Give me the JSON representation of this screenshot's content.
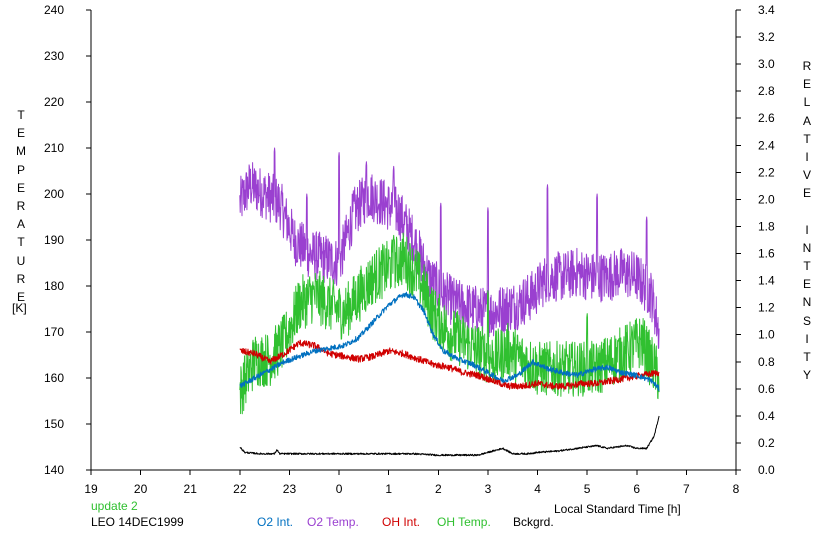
{
  "chart_data": {
    "type": "line",
    "title": "",
    "xlabel": "Local Standard Time [h]",
    "x_ticks": [
      "19",
      "20",
      "21",
      "22",
      "23",
      "0",
      "1",
      "2",
      "3",
      "4",
      "5",
      "6",
      "7",
      "8"
    ],
    "xlim": [
      19,
      32
    ],
    "left_axis": {
      "label_chars": [
        "T",
        "E",
        "M",
        "P",
        "E",
        "R",
        "A",
        "T",
        "U",
        "R",
        "E"
      ],
      "unit": "[K]",
      "ylim": [
        140,
        240
      ],
      "ticks": [
        "140",
        "150",
        "160",
        "170",
        "180",
        "190",
        "200",
        "210",
        "220",
        "230",
        "240"
      ]
    },
    "right_axis": {
      "label_chars": [
        "R",
        "E",
        "L",
        "A",
        "T",
        "I",
        "V",
        "E",
        " ",
        "I",
        "N",
        "T",
        "E",
        "N",
        "S",
        "I",
        "T",
        "Y"
      ],
      "ylim": [
        0.0,
        3.4
      ],
      "ticks": [
        "0.0",
        "0.2",
        "0.4",
        "0.6",
        "0.8",
        "1.0",
        "1.2",
        "1.4",
        "1.6",
        "1.8",
        "2.0",
        "2.2",
        "2.4",
        "2.6",
        "2.8",
        "3.0",
        "3.2",
        "3.4"
      ]
    },
    "update_note": "update 2",
    "station_label": "LEO 14DEC1999",
    "grid": false,
    "legend_position": "bottom",
    "series": [
      {
        "name": "O2 Int.",
        "axis": "right",
        "color": "#0070c0",
        "noise": 0.02,
        "x": [
          22.0,
          22.3,
          22.6,
          22.9,
          23.2,
          23.5,
          23.8,
          24.1,
          24.4,
          24.7,
          25.0,
          25.3,
          25.5,
          25.7,
          25.9,
          26.1,
          26.4,
          26.7,
          27.0,
          27.3,
          27.6,
          27.9,
          28.2,
          28.5,
          28.8,
          29.1,
          29.4,
          29.7,
          30.0,
          30.3,
          30.45
        ],
        "y": [
          0.62,
          0.68,
          0.74,
          0.8,
          0.84,
          0.88,
          0.9,
          0.92,
          0.98,
          1.1,
          1.22,
          1.3,
          1.28,
          1.18,
          1.0,
          0.88,
          0.82,
          0.78,
          0.72,
          0.66,
          0.7,
          0.8,
          0.75,
          0.72,
          0.7,
          0.74,
          0.76,
          0.72,
          0.7,
          0.66,
          0.6
        ]
      },
      {
        "name": "O2 Temp.",
        "axis": "left",
        "color": "#9a40d0",
        "noise": 5.5,
        "x": [
          22.0,
          22.2,
          22.5,
          22.8,
          23.1,
          23.4,
          23.7,
          24.0,
          24.3,
          24.6,
          24.9,
          25.2,
          25.5,
          25.8,
          26.1,
          26.4,
          26.7,
          27.0,
          27.3,
          27.6,
          27.9,
          28.2,
          28.5,
          28.8,
          29.1,
          29.4,
          29.7,
          30.0,
          30.3,
          30.45
        ],
        "y": [
          198,
          202,
          200,
          198,
          190,
          187,
          186,
          185,
          196,
          200,
          198,
          196,
          190,
          182,
          178,
          176,
          175,
          174,
          175,
          176,
          178,
          182,
          182,
          183,
          182,
          182,
          183,
          182,
          178,
          170
        ],
        "spikes": [
          [
            22.7,
            210
          ],
          [
            23.35,
            200
          ],
          [
            24.0,
            209
          ],
          [
            24.55,
            207
          ],
          [
            25.1,
            206
          ],
          [
            26.05,
            198
          ],
          [
            27.0,
            197
          ],
          [
            28.2,
            202
          ],
          [
            29.2,
            200
          ],
          [
            30.2,
            195
          ]
        ]
      },
      {
        "name": "OH Int.",
        "axis": "right",
        "color": "#d00000",
        "noise": 0.025,
        "x": [
          22.0,
          22.3,
          22.6,
          22.9,
          23.2,
          23.5,
          23.8,
          24.1,
          24.4,
          24.7,
          25.0,
          25.3,
          25.6,
          25.9,
          26.2,
          26.5,
          26.8,
          27.1,
          27.4,
          27.7,
          28.0,
          28.3,
          28.6,
          28.9,
          29.2,
          29.5,
          29.8,
          30.1,
          30.45
        ],
        "y": [
          0.88,
          0.86,
          0.8,
          0.86,
          0.94,
          0.92,
          0.86,
          0.84,
          0.82,
          0.84,
          0.88,
          0.86,
          0.82,
          0.78,
          0.76,
          0.72,
          0.7,
          0.66,
          0.62,
          0.62,
          0.64,
          0.62,
          0.62,
          0.64,
          0.64,
          0.66,
          0.68,
          0.7,
          0.72
        ]
      },
      {
        "name": "OH Temp.",
        "axis": "left",
        "color": "#30c030",
        "noise": 6.0,
        "x": [
          22.0,
          22.3,
          22.6,
          22.9,
          23.2,
          23.5,
          23.8,
          24.1,
          24.4,
          24.7,
          25.0,
          25.3,
          25.6,
          25.9,
          26.2,
          26.5,
          26.8,
          27.1,
          27.4,
          27.7,
          28.0,
          28.3,
          28.6,
          28.9,
          29.2,
          29.5,
          29.8,
          30.1,
          30.45
        ],
        "y": [
          157,
          164,
          164,
          168,
          176,
          178,
          176,
          174,
          178,
          182,
          184,
          186,
          182,
          174,
          170,
          168,
          166,
          164,
          166,
          164,
          162,
          162,
          162,
          162,
          162,
          164,
          166,
          168,
          160
        ],
        "spikes": [
          [
            25.1,
            191
          ],
          [
            27.0,
            179
          ],
          [
            29.0,
            174
          ]
        ]
      },
      {
        "name": "Bckgrd.",
        "axis": "right",
        "color": "#000000",
        "noise": 0.006,
        "x": [
          22.0,
          22.1,
          22.4,
          22.7,
          22.75,
          22.8,
          23.0,
          23.5,
          24.0,
          24.5,
          25.0,
          25.5,
          26.0,
          26.5,
          26.8,
          27.0,
          27.3,
          27.5,
          27.8,
          28.0,
          28.4,
          28.8,
          29.2,
          29.4,
          29.6,
          29.8,
          30.0,
          30.2,
          30.35,
          30.45
        ],
        "y": [
          0.17,
          0.13,
          0.12,
          0.12,
          0.15,
          0.12,
          0.12,
          0.12,
          0.12,
          0.12,
          0.12,
          0.12,
          0.11,
          0.11,
          0.11,
          0.13,
          0.16,
          0.12,
          0.12,
          0.13,
          0.14,
          0.16,
          0.18,
          0.16,
          0.17,
          0.18,
          0.16,
          0.16,
          0.25,
          0.4
        ]
      }
    ]
  }
}
